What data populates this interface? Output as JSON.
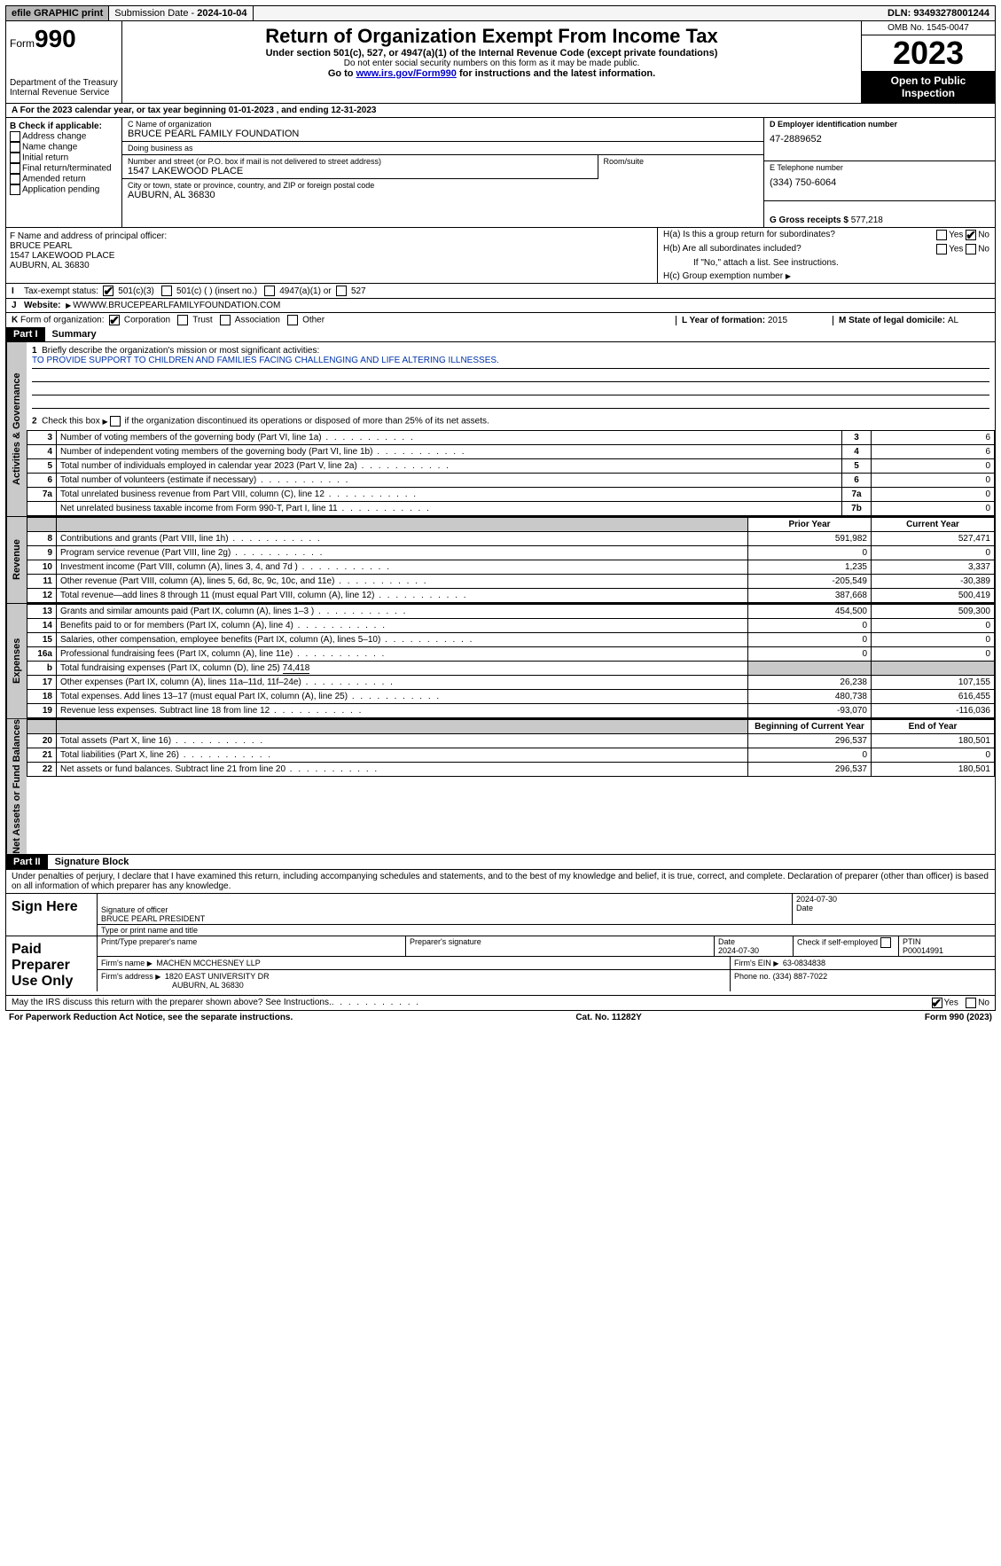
{
  "topbar": {
    "efile": "efile GRAPHIC print",
    "submission_label": "Submission Date - ",
    "submission_date": "2024-10-04",
    "dln_label": "DLN: ",
    "dln": "93493278001244"
  },
  "header": {
    "form_prefix": "Form",
    "form_number": "990",
    "dept": "Department of the Treasury\nInternal Revenue Service",
    "title": "Return of Organization Exempt From Income Tax",
    "sub1": "Under section 501(c), 527, or 4947(a)(1) of the Internal Revenue Code (except private foundations)",
    "sub2": "Do not enter social security numbers on this form as it may be made public.",
    "sub3_pre": "Go to ",
    "sub3_link": "www.irs.gov/Form990",
    "sub3_post": " for instructions and the latest information.",
    "omb": "OMB No. 1545-0047",
    "year": "2023",
    "open": "Open to Public Inspection"
  },
  "line_a": {
    "text_pre": "For the 2023 calendar year, or tax year beginning ",
    "begin": "01-01-2023",
    "mid": " , and ending ",
    "end": "12-31-2023"
  },
  "box_b": {
    "header": "B Check if applicable:",
    "items": [
      "Address change",
      "Name change",
      "Initial return",
      "Final return/terminated",
      "Amended return",
      "Application pending"
    ]
  },
  "box_c": {
    "name_lbl": "C Name of organization",
    "name": "BRUCE PEARL FAMILY FOUNDATION",
    "dba_lbl": "Doing business as",
    "dba": "",
    "street_lbl": "Number and street (or P.O. box if mail is not delivered to street address)",
    "street": "1547 LAKEWOOD PLACE",
    "room_lbl": "Room/suite",
    "city_lbl": "City or town, state or province, country, and ZIP or foreign postal code",
    "city": "AUBURN, AL  36830"
  },
  "box_d": {
    "lbl": "D Employer identification number",
    "val": "47-2889652"
  },
  "box_e": {
    "lbl": "E Telephone number",
    "val": "(334) 750-6064"
  },
  "box_g": {
    "lbl": "G Gross receipts $ ",
    "val": "577,218"
  },
  "box_f": {
    "lbl": "F  Name and address of principal officer:",
    "name": "BRUCE PEARL",
    "addr1": "1547 LAKEWOOD PLACE",
    "addr2": "AUBURN, AL  36830"
  },
  "box_h": {
    "a_lbl": "H(a)  Is this a group return for subordinates?",
    "b_lbl": "H(b)  Are all subordinates included?",
    "b_note": "If \"No,\" attach a list. See instructions.",
    "c_lbl": "H(c)  Group exemption number",
    "yes": "Yes",
    "no": "No",
    "a_no_checked": true
  },
  "line_i": {
    "lead": "I",
    "lbl": "Tax-exempt status:",
    "opts": [
      "501(c)(3)",
      "501(c) (  ) (insert no.)",
      "4947(a)(1) or",
      "527"
    ],
    "checked": 0
  },
  "line_j": {
    "lead": "J",
    "lbl": "Website:",
    "val": "WWWW.BRUCEPEARLFAMILYFOUNDATION.COM"
  },
  "line_k": {
    "lead": "K",
    "lbl": "Form of organization:",
    "opts": [
      "Corporation",
      "Trust",
      "Association",
      "Other"
    ],
    "checked": 0
  },
  "line_l": {
    "lbl": "L Year of formation: ",
    "val": "2015"
  },
  "line_m": {
    "lbl": "M State of legal domicile: ",
    "val": "AL"
  },
  "part1": {
    "hdr": "Part I",
    "title": "Summary",
    "q1_lbl": "1",
    "q1": "Briefly describe the organization's mission or most significant activities:",
    "q1_val": "TO PROVIDE SUPPORT TO CHILDREN AND FAMILIES FACING CHALLENGING AND LIFE ALTERING ILLNESSES.",
    "q2_lbl": "2",
    "q2": "Check this box",
    "q2b": "if the organization discontinued its operations or disposed of more than 25% of its net assets."
  },
  "sections": {
    "gov": "Activities & Governance",
    "rev": "Revenue",
    "exp": "Expenses",
    "net": "Net Assets or Fund Balances"
  },
  "gov_rows": [
    {
      "n": "3",
      "d": "Number of voting members of the governing body (Part VI, line 1a)",
      "b": "3",
      "v": "6"
    },
    {
      "n": "4",
      "d": "Number of independent voting members of the governing body (Part VI, line 1b)",
      "b": "4",
      "v": "6"
    },
    {
      "n": "5",
      "d": "Total number of individuals employed in calendar year 2023 (Part V, line 2a)",
      "b": "5",
      "v": "0"
    },
    {
      "n": "6",
      "d": "Total number of volunteers (estimate if necessary)",
      "b": "6",
      "v": "0"
    },
    {
      "n": "7a",
      "d": "Total unrelated business revenue from Part VIII, column (C), line 12",
      "b": "7a",
      "v": "0"
    },
    {
      "n": "",
      "d": "Net unrelated business taxable income from Form 990-T, Part I, line 11",
      "b": "7b",
      "v": "0"
    }
  ],
  "col_hdrs": {
    "prior": "Prior Year",
    "current": "Current Year",
    "begin": "Beginning of Current Year",
    "end": "End of Year"
  },
  "rev_rows": [
    {
      "n": "8",
      "d": "Contributions and grants (Part VIII, line 1h)",
      "p": "591,982",
      "c": "527,471"
    },
    {
      "n": "9",
      "d": "Program service revenue (Part VIII, line 2g)",
      "p": "0",
      "c": "0"
    },
    {
      "n": "10",
      "d": "Investment income (Part VIII, column (A), lines 3, 4, and 7d )",
      "p": "1,235",
      "c": "3,337"
    },
    {
      "n": "11",
      "d": "Other revenue (Part VIII, column (A), lines 5, 6d, 8c, 9c, 10c, and 11e)",
      "p": "-205,549",
      "c": "-30,389"
    },
    {
      "n": "12",
      "d": "Total revenue—add lines 8 through 11 (must equal Part VIII, column (A), line 12)",
      "p": "387,668",
      "c": "500,419"
    }
  ],
  "exp_rows": [
    {
      "n": "13",
      "d": "Grants and similar amounts paid (Part IX, column (A), lines 1–3 )",
      "p": "454,500",
      "c": "509,300"
    },
    {
      "n": "14",
      "d": "Benefits paid to or for members (Part IX, column (A), line 4)",
      "p": "0",
      "c": "0"
    },
    {
      "n": "15",
      "d": "Salaries, other compensation, employee benefits (Part IX, column (A), lines 5–10)",
      "p": "0",
      "c": "0"
    },
    {
      "n": "16a",
      "d": "Professional fundraising fees (Part IX, column (A), line 11e)",
      "p": "0",
      "c": "0"
    }
  ],
  "exp_16b": {
    "n": "b",
    "d": "Total fundraising expenses (Part IX, column (D), line 25) ",
    "v": "74,418"
  },
  "exp_rows2": [
    {
      "n": "17",
      "d": "Other expenses (Part IX, column (A), lines 11a–11d, 11f–24e)",
      "p": "26,238",
      "c": "107,155"
    },
    {
      "n": "18",
      "d": "Total expenses. Add lines 13–17 (must equal Part IX, column (A), line 25)",
      "p": "480,738",
      "c": "616,455"
    },
    {
      "n": "19",
      "d": "Revenue less expenses. Subtract line 18 from line 12",
      "p": "-93,070",
      "c": "-116,036"
    }
  ],
  "net_rows": [
    {
      "n": "20",
      "d": "Total assets (Part X, line 16)",
      "p": "296,537",
      "c": "180,501"
    },
    {
      "n": "21",
      "d": "Total liabilities (Part X, line 26)",
      "p": "0",
      "c": "0"
    },
    {
      "n": "22",
      "d": "Net assets or fund balances. Subtract line 21 from line 20",
      "p": "296,537",
      "c": "180,501"
    }
  ],
  "part2": {
    "hdr": "Part II",
    "title": "Signature Block",
    "decl": "Under penalties of perjury, I declare that I have examined this return, including accompanying schedules and statements, and to the best of my knowledge and belief, it is true, correct, and complete. Declaration of preparer (other than officer) is based on all information of which preparer has any knowledge."
  },
  "sign": {
    "here": "Sign Here",
    "sig_lbl": "Signature of officer",
    "date_lbl": "Date",
    "date": "2024-07-30",
    "name_lbl": "Type or print name and title",
    "name": "BRUCE PEARL PRESIDENT"
  },
  "paid": {
    "title": "Paid Preparer Use Only",
    "pt_lbl": "Print/Type preparer's name",
    "sig_lbl": "Preparer's signature",
    "date_lbl": "Date",
    "date": "2024-07-30",
    "self_lbl": "Check         if self-employed",
    "ptin_lbl": "PTIN",
    "ptin": "P00014991",
    "firm_name_lbl": "Firm's name",
    "firm_name": "MACHEN MCCHESNEY LLP",
    "firm_ein_lbl": "Firm's EIN",
    "firm_ein": "63-0834838",
    "firm_addr_lbl": "Firm's address",
    "firm_addr1": "1820 EAST UNIVERSITY DR",
    "firm_addr2": "AUBURN, AL  36830",
    "phone_lbl": "Phone no.",
    "phone": "(334) 887-7022"
  },
  "discuss": {
    "q": "May the IRS discuss this return with the preparer shown above? See Instructions.",
    "yes": "Yes",
    "no": "No",
    "yes_checked": true
  },
  "footer": {
    "left": "For Paperwork Reduction Act Notice, see the separate instructions.",
    "mid": "Cat. No. 11282Y",
    "right_pre": "Form ",
    "right_b": "990",
    "right_post": " (2023)"
  }
}
